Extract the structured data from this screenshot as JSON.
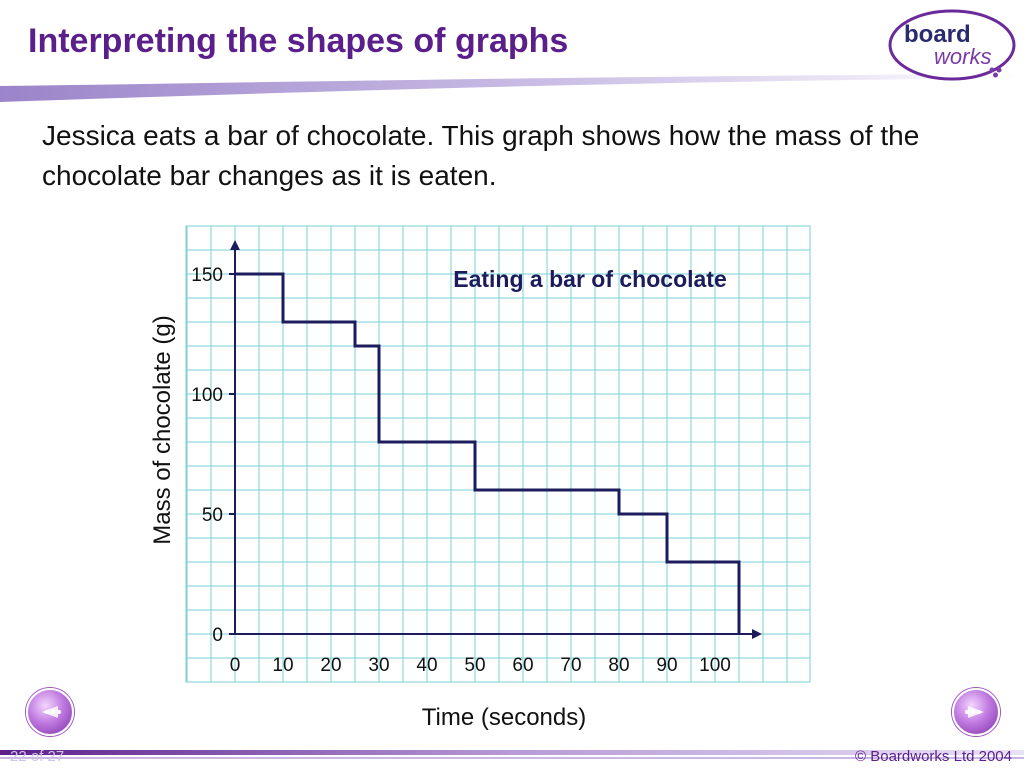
{
  "header": {
    "title": "Interpreting the shapes of graphs",
    "logo_top": "board",
    "logo_bottom": "works"
  },
  "intro": {
    "text": "Jessica eats a bar of chocolate. This graph shows how the mass of the chocolate bar changes as it is eaten."
  },
  "chart_data": {
    "type": "line",
    "title": "Eating a bar of chocolate",
    "xlabel": "Time (seconds)",
    "ylabel": "Mass of chocolate (g)",
    "x_ticks": [
      "0",
      "10",
      "20",
      "30",
      "40",
      "50",
      "60",
      "70",
      "80",
      "90",
      "100"
    ],
    "y_ticks": [
      "0",
      "50",
      "100",
      "150"
    ],
    "xlim": [
      -10,
      120
    ],
    "ylim": [
      0,
      160
    ],
    "grid": true,
    "series": [
      {
        "step": true,
        "x": [
          0,
          10,
          10,
          25,
          25,
          30,
          30,
          50,
          50,
          80,
          80,
          90,
          90,
          105,
          105
        ],
        "y": [
          150,
          150,
          130,
          130,
          120,
          120,
          80,
          80,
          60,
          60,
          50,
          50,
          30,
          30,
          0
        ]
      }
    ],
    "colors": {
      "line": "#1c1c5c",
      "grid": "#7ad0d8",
      "axis": "#1c1c5c"
    }
  },
  "navigation": {
    "prev_icon": "left-arrow-icon",
    "next_icon": "right-arrow-icon"
  },
  "footer": {
    "slide_count": "22 of 27",
    "copyright": "© Boardworks Ltd 2004"
  },
  "colors": {
    "brand": "#5b1f8c",
    "accent": "#c9b7e6"
  }
}
